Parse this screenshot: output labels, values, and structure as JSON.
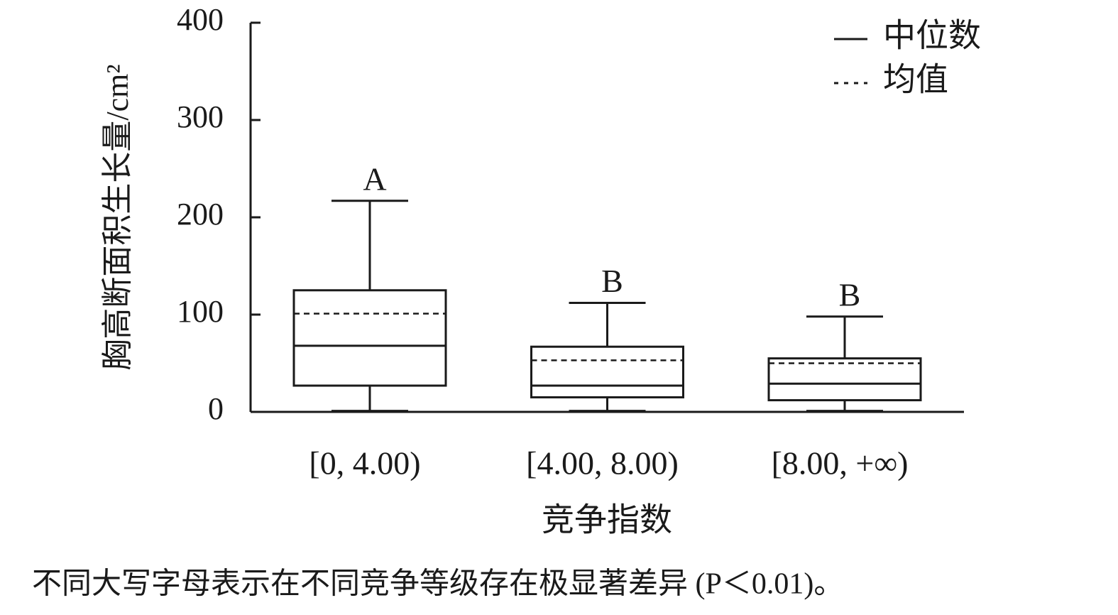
{
  "chart_data": {
    "type": "box",
    "ylabel": "胸高断面积生长量/cm²",
    "xlabel": "竞争指数",
    "categories": [
      "[0, 4.00)",
      "[4.00, 8.00)",
      "[8.00, +∞)"
    ],
    "boxes": [
      {
        "min": 1,
        "q1": 27,
        "median": 68,
        "q3": 125,
        "max": 217,
        "mean": 101
      },
      {
        "min": 1,
        "q1": 15,
        "median": 27,
        "q3": 67,
        "max": 112,
        "mean": 53
      },
      {
        "min": 1,
        "q1": 12,
        "median": 29,
        "q3": 55,
        "max": 98,
        "mean": 50
      }
    ],
    "group_labels": [
      "A",
      "B",
      "B"
    ],
    "legend": [
      {
        "label": "中位数",
        "style": "solid"
      },
      {
        "label": "均值",
        "style": "dashed"
      }
    ],
    "color": "#1a1a1a",
    "ylim": [
      0,
      400
    ],
    "yticks": [
      0,
      100,
      200,
      300,
      400
    ],
    "note": "不同大写字母表示在不同竞争等级存在极显著差异 (P＜0.01)。"
  }
}
